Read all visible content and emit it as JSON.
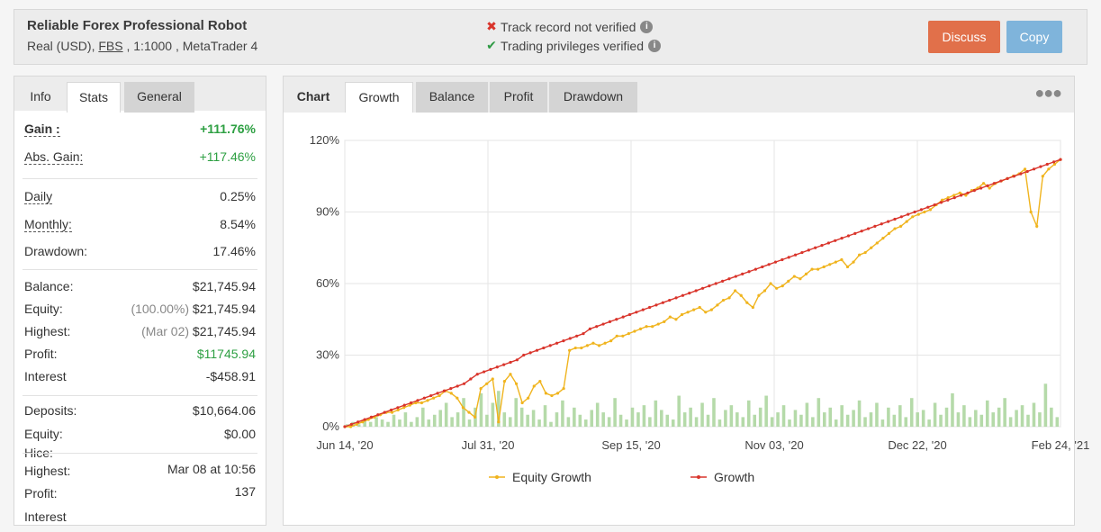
{
  "header": {
    "title": "Reliable Forex Professional Robot",
    "account_type": "Real (USD),",
    "broker": "FBS",
    "leverage_platform": ", 1:1000 , MetaTrader 4",
    "track_record": "Track record not verified",
    "trading_privileges": "Trading privileges verified",
    "discuss_label": "Discuss",
    "copy_label": "Copy"
  },
  "left_tabs": {
    "info": "Info",
    "stats": "Stats",
    "general": "General"
  },
  "stats": {
    "gain": {
      "label": "Gain :",
      "value": "+111.76%"
    },
    "abs_gain": {
      "label": "Abs. Gain:",
      "value": "+117.46%"
    },
    "daily": {
      "label": "Daily",
      "value": "0.25%"
    },
    "monthly": {
      "label": "Monthly:",
      "value": "8.54%"
    },
    "drawdown": {
      "label": "Drawdown:",
      "value": "17.46%"
    },
    "balance": {
      "label": "Balance:",
      "value": "$21,745.94"
    },
    "equity": {
      "label": "Equity:",
      "pct": "(100.00%)",
      "value": "$21,745.94"
    },
    "highest": {
      "label": "Highest:",
      "date": "(Mar 02)",
      "value": "$21,745.94"
    },
    "profit": {
      "label": "Profit:",
      "value": "$11745.94"
    },
    "interest": {
      "label": "Interest",
      "value": "-$458.91"
    },
    "deposits": {
      "label": "Deposits:",
      "value": "$10,664.06"
    },
    "equity2": {
      "label": "Equity:",
      "value": "$0.00"
    },
    "hice": {
      "label": "Hice:"
    },
    "highest2": {
      "label": "Highest:",
      "value": "Mar 08 at 10:56"
    },
    "profit2": {
      "label": "Profit:",
      "value": "137"
    },
    "interest2": {
      "label": "Interest"
    }
  },
  "chart_tabs": {
    "label": "Chart",
    "growth": "Growth",
    "balance": "Balance",
    "profit": "Profit",
    "drawdown": "Drawdown"
  },
  "chart_data": {
    "type": "line",
    "x_ticks": [
      "Jun 14, '20",
      "Jul 31, '20",
      "Sep 15, '20",
      "Nov 03, '20",
      "Dec 22, '20",
      "Feb 24, '21"
    ],
    "y_ticks": [
      "0%",
      "30%",
      "60%",
      "90%",
      "120%"
    ],
    "ylim": [
      0,
      120
    ],
    "legend_position": "bottom",
    "series": [
      {
        "name": "Equity Growth",
        "color": "#f0b41e",
        "values": [
          0,
          0,
          1,
          2,
          3,
          4,
          5,
          6,
          6,
          7,
          8,
          9,
          10,
          10,
          11,
          12,
          13,
          15,
          14,
          12,
          8,
          6,
          4,
          16,
          18,
          20,
          2,
          19,
          22,
          18,
          10,
          12,
          17,
          19,
          14,
          13,
          14,
          16,
          32,
          33,
          33,
          34,
          35,
          34,
          35,
          36,
          38,
          38,
          39,
          40,
          41,
          42,
          42,
          43,
          44,
          46,
          45,
          47,
          48,
          49,
          50,
          48,
          49,
          51,
          53,
          54,
          57,
          55,
          52,
          50,
          55,
          57,
          60,
          58,
          59,
          61,
          63,
          62,
          64,
          66,
          66,
          67,
          68,
          69,
          70,
          67,
          69,
          72,
          73,
          75,
          77,
          79,
          81,
          83,
          84,
          86,
          88,
          89,
          90,
          91,
          93,
          95,
          96,
          97,
          98,
          97,
          99,
          100,
          102,
          100,
          102,
          103,
          104,
          105,
          106,
          108,
          90,
          84,
          105,
          108,
          110,
          112
        ]
      },
      {
        "name": "Growth",
        "color": "#d9342b",
        "values": [
          0,
          1,
          2,
          3,
          4,
          5,
          6,
          7,
          8,
          9,
          10,
          11,
          12,
          13,
          14,
          15,
          16,
          17,
          18,
          20,
          22,
          23,
          24,
          25,
          26,
          27,
          28,
          30,
          31,
          32,
          33,
          34,
          35,
          36,
          37,
          38,
          39,
          41,
          42,
          43,
          44,
          45,
          46,
          47,
          48,
          49,
          50,
          51,
          52,
          53,
          54,
          55,
          56,
          57,
          58,
          59,
          60,
          61,
          62,
          63,
          64,
          65,
          66,
          67,
          68,
          69,
          70,
          71,
          72,
          73,
          74,
          75,
          76,
          77,
          78,
          79,
          80,
          81,
          82,
          83,
          84,
          85,
          86,
          87,
          88,
          89,
          90,
          91,
          92,
          93,
          94,
          95,
          96,
          97,
          98,
          99,
          100,
          101,
          102,
          103,
          104,
          105,
          106,
          107,
          108,
          109,
          110,
          111,
          112
        ]
      }
    ],
    "bars": {
      "color": "#a8d49a",
      "values": [
        1,
        2,
        1,
        3,
        2,
        4,
        3,
        2,
        5,
        3,
        6,
        2,
        4,
        8,
        3,
        5,
        7,
        10,
        4,
        6,
        12,
        3,
        8,
        14,
        5,
        10,
        15,
        6,
        4,
        12,
        8,
        5,
        7,
        3,
        9,
        2,
        6,
        11,
        4,
        8,
        5,
        3,
        7,
        10,
        6,
        4,
        12,
        5,
        3,
        8,
        6,
        9,
        4,
        11,
        7,
        5,
        3,
        13,
        6,
        8,
        4,
        10,
        5,
        12,
        3,
        7,
        9,
        6,
        4,
        11,
        5,
        8,
        13,
        4,
        6,
        9,
        3,
        7,
        5,
        10,
        4,
        12,
        6,
        8,
        3,
        9,
        5,
        7,
        11,
        4,
        6,
        10,
        3,
        8,
        5,
        9,
        4,
        12,
        6,
        7,
        3,
        10,
        5,
        8,
        14,
        6,
        9,
        4,
        7,
        5,
        11,
        6,
        8,
        12,
        4,
        7,
        9,
        5,
        10,
        6,
        18,
        8,
        4
      ]
    }
  }
}
